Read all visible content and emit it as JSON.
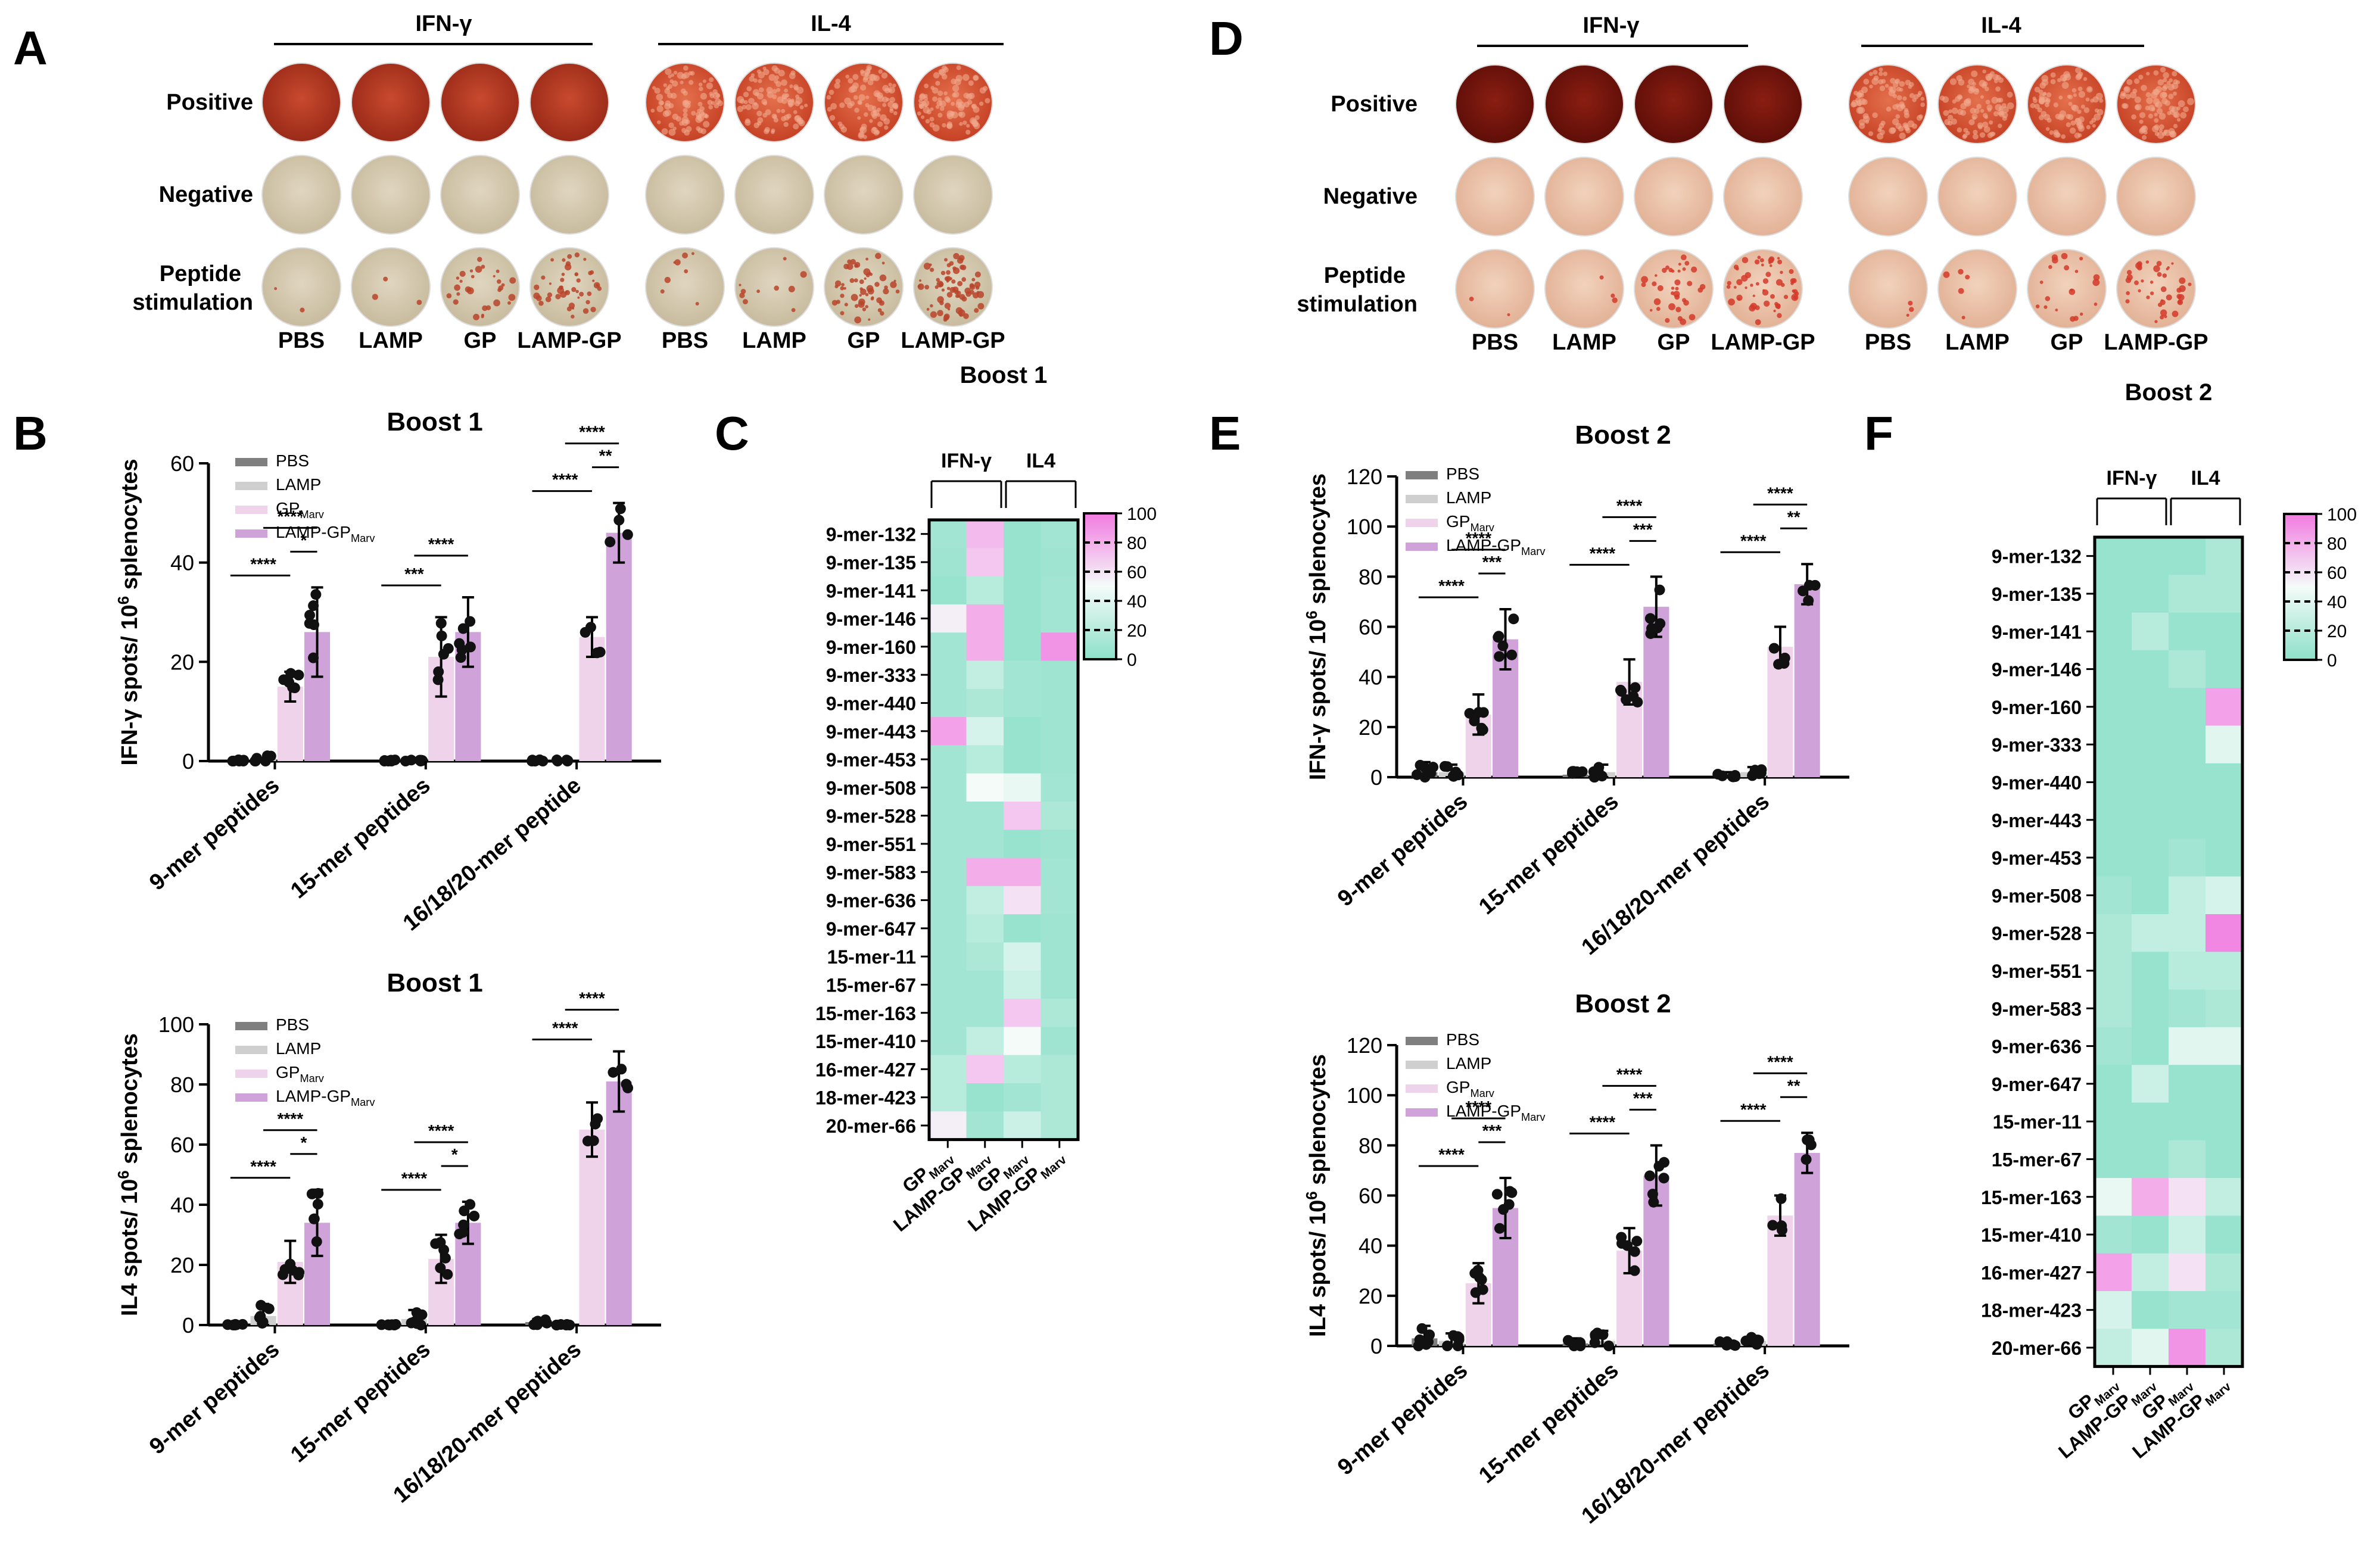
{
  "panel_labels": [
    "A",
    "B",
    "C",
    "D",
    "E",
    "F"
  ],
  "colors": {
    "PBS": "#7f7f7f",
    "LAMP": "#cfcfcf",
    "GP": "#efd3ea",
    "LAMP-GP": "#cfa3da",
    "heat_low": "#8ee0c8",
    "heat_high": "#f27ae0"
  },
  "elispot": [
    {
      "panel": "A",
      "group_headers": [
        "IFN-γ",
        "IL-4"
      ],
      "row_labels": [
        "Positive",
        "Negative",
        "Peptide",
        "stimulation"
      ],
      "col_labels": [
        "PBS",
        "LAMP",
        "GP",
        "LAMP-GP",
        "PBS",
        "LAMP",
        "GP",
        "LAMP-GP"
      ]
    },
    {
      "panel": "D",
      "group_headers": [
        "IFN-γ",
        "IL-4"
      ],
      "row_labels": [
        "Positive",
        "Negative",
        "Peptide",
        "stimulation"
      ],
      "col_labels": [
        "PBS",
        "LAMP",
        "GP",
        "LAMP-GP",
        "PBS",
        "LAMP",
        "GP",
        "LAMP-GP"
      ]
    }
  ],
  "legend_labels": [
    {
      "main": "PBS",
      "sub": ""
    },
    {
      "main": "LAMP",
      "sub": ""
    },
    {
      "main": "GP",
      "sub": "Marv"
    },
    {
      "main": "LAMP-GP",
      "sub": "Marv"
    }
  ],
  "chart_data": [
    {
      "panel": "B-top",
      "type": "bar",
      "title": "Boost 1",
      "ylabel": "IFN-γ spots/ 10",
      "ylabel_sup": "6",
      "ylabel_tail": " splenocytes",
      "ylim": [
        0,
        60
      ],
      "yticks": [
        0,
        20,
        40,
        60
      ],
      "categories": [
        "9-mer peptides",
        "15-mer peptides",
        "16/18/20-mer peptide"
      ],
      "series": [
        {
          "name": "PBS",
          "values": [
            0,
            0,
            0
          ],
          "errors": [
            0.3,
            0.3,
            0.3
          ]
        },
        {
          "name": "LAMP",
          "values": [
            0.5,
            0,
            0
          ],
          "errors": [
            0.8,
            0.3,
            0.3
          ]
        },
        {
          "name": "GP Marv",
          "values": [
            15,
            21,
            25
          ],
          "errors": [
            3,
            8,
            4
          ]
        },
        {
          "name": "LAMP-GP Marv",
          "values": [
            26,
            26,
            46
          ],
          "errors": [
            9,
            7,
            6
          ]
        }
      ],
      "significance": [
        [
          "****",
          "*",
          "****"
        ],
        [
          "***",
          "****"
        ],
        [
          "****",
          "**",
          "****"
        ]
      ]
    },
    {
      "panel": "B-bottom",
      "type": "bar",
      "title": "Boost 1",
      "ylabel": "IL4 spots/ 10",
      "ylabel_sup": "6",
      "ylabel_tail": " splenocytes",
      "ylim": [
        0,
        100
      ],
      "yticks": [
        0,
        20,
        40,
        60,
        80,
        100
      ],
      "categories": [
        "9-mer peptides",
        "15-mer peptides",
        "16/18/20-mer peptides"
      ],
      "series": [
        {
          "name": "PBS",
          "values": [
            0,
            0,
            1
          ],
          "errors": [
            0.3,
            0.3,
            1
          ]
        },
        {
          "name": "LAMP",
          "values": [
            3,
            2,
            0
          ],
          "errors": [
            4,
            3,
            0.3
          ]
        },
        {
          "name": "GP Marv",
          "values": [
            21,
            22,
            65
          ],
          "errors": [
            7,
            8,
            9
          ]
        },
        {
          "name": "LAMP-GP Marv",
          "values": [
            34,
            34,
            81
          ],
          "errors": [
            11,
            7,
            10
          ]
        }
      ],
      "significance": [
        [
          "****",
          "*",
          "****"
        ],
        [
          "****",
          "*",
          "****"
        ],
        [
          "****",
          "****"
        ]
      ]
    },
    {
      "panel": "E-top",
      "type": "bar",
      "title": "Boost 2",
      "ylabel": "IFN-γ spots/ 10",
      "ylabel_sup": "6",
      "ylabel_tail": " splenocytes",
      "ylim": [
        0,
        120
      ],
      "yticks": [
        0,
        20,
        40,
        60,
        80,
        100,
        120
      ],
      "categories": [
        "9-mer peptides",
        "15-mer peptides",
        "16/18/20-mer peptides"
      ],
      "series": [
        {
          "name": "PBS",
          "values": [
            2,
            1,
            1
          ],
          "errors": [
            4,
            2,
            1
          ]
        },
        {
          "name": "LAMP",
          "values": [
            2,
            2,
            2
          ],
          "errors": [
            3,
            3,
            2
          ]
        },
        {
          "name": "GP Marv",
          "values": [
            25,
            38,
            52
          ],
          "errors": [
            8,
            9,
            8
          ]
        },
        {
          "name": "LAMP-GP Marv",
          "values": [
            55,
            68,
            77
          ],
          "errors": [
            12,
            12,
            8
          ]
        }
      ],
      "significance": [
        [
          "****",
          "***",
          "****"
        ],
        [
          "****",
          "***",
          "****"
        ],
        [
          "****",
          "**",
          "****"
        ]
      ]
    },
    {
      "panel": "E-bottom",
      "type": "bar",
      "title": "Boost 2",
      "ylabel": "IL4 spots/ 10",
      "ylabel_sup": "6",
      "ylabel_tail": " splenocytes",
      "ylim": [
        0,
        120
      ],
      "yticks": [
        0,
        20,
        40,
        60,
        80,
        100,
        120
      ],
      "categories": [
        "9-mer peptides",
        "15-mer peptides",
        "16/18/20-mer peptides"
      ],
      "series": [
        {
          "name": "PBS",
          "values": [
            3,
            1,
            1
          ],
          "errors": [
            5,
            2,
            1
          ]
        },
        {
          "name": "LAMP",
          "values": [
            2,
            2,
            2
          ],
          "errors": [
            3,
            4,
            2
          ]
        },
        {
          "name": "GP Marv",
          "values": [
            25,
            38,
            52
          ],
          "errors": [
            8,
            9,
            8
          ]
        },
        {
          "name": "LAMP-GP Marv",
          "values": [
            55,
            68,
            77
          ],
          "errors": [
            12,
            12,
            8
          ]
        }
      ],
      "significance": [
        [
          "****",
          "***",
          "****"
        ],
        [
          "****",
          "***",
          "****"
        ],
        [
          "****",
          "**",
          "****"
        ]
      ]
    },
    {
      "panel": "C",
      "type": "heatmap",
      "title": "Boost 1",
      "group_headers": [
        "IFN-γ",
        "IL4"
      ],
      "columns": [
        {
          "main": "GP",
          "sub": "Marv"
        },
        {
          "main": "LAMP-GP",
          "sub": "Marv"
        },
        {
          "main": "GP",
          "sub": "Marv"
        },
        {
          "main": "LAMP-GP",
          "sub": "Marv"
        }
      ],
      "rows": [
        "9-mer-132",
        "9-mer-135",
        "9-mer-141",
        "9-mer-146",
        "9-mer-160",
        "9-mer-333",
        "9-mer-440",
        "9-mer-443",
        "9-mer-453",
        "9-mer-508",
        "9-mer-528",
        "9-mer-551",
        "9-mer-583",
        "9-mer-636",
        "9-mer-647",
        "15-mer-11",
        "15-mer-67",
        "15-mer-163",
        "15-mer-410",
        "16-mer-427",
        "18-mer-423",
        "20-mer-66"
      ],
      "values": [
        [
          10,
          75,
          5,
          10
        ],
        [
          8,
          70,
          5,
          8
        ],
        [
          5,
          20,
          5,
          10
        ],
        [
          55,
          80,
          5,
          10
        ],
        [
          10,
          80,
          5,
          90
        ],
        [
          10,
          25,
          10,
          8
        ],
        [
          10,
          15,
          10,
          8
        ],
        [
          85,
          35,
          5,
          8
        ],
        [
          10,
          20,
          5,
          8
        ],
        [
          10,
          50,
          45,
          10
        ],
        [
          10,
          10,
          70,
          15
        ],
        [
          10,
          10,
          5,
          8
        ],
        [
          10,
          80,
          80,
          10
        ],
        [
          10,
          25,
          60,
          10
        ],
        [
          10,
          20,
          5,
          8
        ],
        [
          10,
          15,
          35,
          8
        ],
        [
          10,
          10,
          30,
          8
        ],
        [
          10,
          10,
          70,
          15
        ],
        [
          10,
          25,
          50,
          8
        ],
        [
          20,
          70,
          20,
          15
        ],
        [
          20,
          5,
          10,
          15
        ],
        [
          55,
          10,
          30,
          15
        ]
      ],
      "colorbar_ticks": [
        0,
        20,
        40,
        60,
        80,
        100
      ]
    },
    {
      "panel": "F",
      "type": "heatmap",
      "title": "Boost 2",
      "group_headers": [
        "IFN-γ",
        "IL4"
      ],
      "columns": [
        {
          "main": "GP",
          "sub": "Marv"
        },
        {
          "main": "LAMP-GP",
          "sub": "Marv"
        },
        {
          "main": "GP",
          "sub": "Marv"
        },
        {
          "main": "LAMP-GP",
          "sub": "Marv"
        }
      ],
      "rows": [
        "9-mer-132",
        "9-mer-135",
        "9-mer-141",
        "9-mer-146",
        "9-mer-160",
        "9-mer-333",
        "9-mer-440",
        "9-mer-443",
        "9-mer-453",
        "9-mer-508",
        "9-mer-528",
        "9-mer-551",
        "9-mer-583",
        "9-mer-636",
        "9-mer-647",
        "15-mer-11",
        "15-mer-67",
        "15-mer-163",
        "15-mer-410",
        "16-mer-427",
        "18-mer-423",
        "20-mer-66"
      ],
      "values": [
        [
          5,
          5,
          5,
          15
        ],
        [
          5,
          5,
          15,
          15
        ],
        [
          5,
          20,
          5,
          5
        ],
        [
          5,
          5,
          15,
          5
        ],
        [
          5,
          5,
          5,
          85
        ],
        [
          5,
          5,
          5,
          40
        ],
        [
          5,
          5,
          5,
          5
        ],
        [
          5,
          5,
          5,
          5
        ],
        [
          5,
          5,
          10,
          5
        ],
        [
          10,
          5,
          25,
          35
        ],
        [
          15,
          25,
          25,
          95
        ],
        [
          15,
          5,
          20,
          20
        ],
        [
          15,
          5,
          10,
          15
        ],
        [
          10,
          5,
          40,
          40
        ],
        [
          5,
          30,
          5,
          5
        ],
        [
          5,
          5,
          5,
          5
        ],
        [
          5,
          5,
          15,
          5
        ],
        [
          45,
          80,
          60,
          25
        ],
        [
          10,
          5,
          30,
          5
        ],
        [
          85,
          25,
          60,
          15
        ],
        [
          35,
          5,
          10,
          10
        ],
        [
          25,
          40,
          90,
          15
        ]
      ],
      "colorbar_ticks": [
        0,
        20,
        40,
        60,
        80,
        100
      ]
    }
  ]
}
